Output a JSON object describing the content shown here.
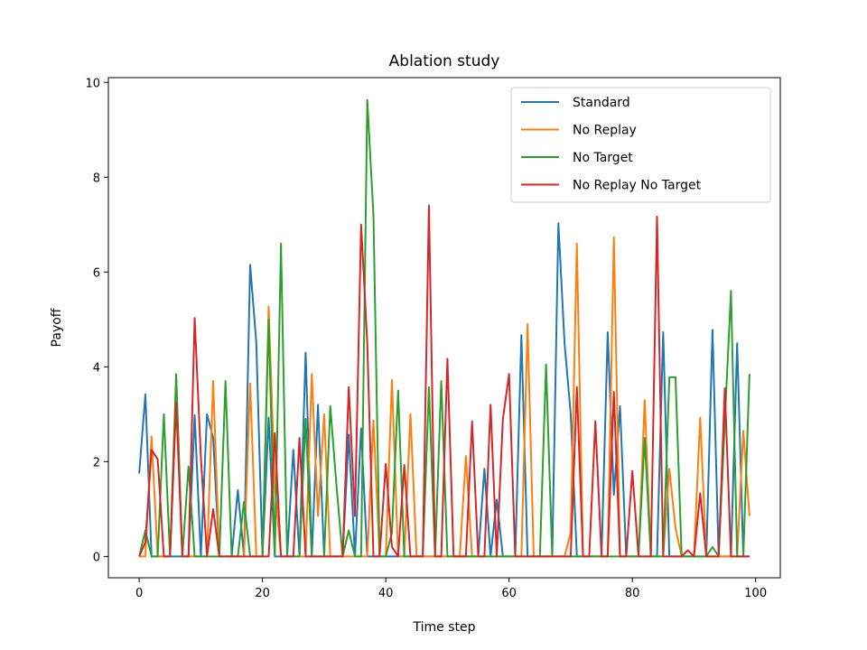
{
  "chart_data": {
    "type": "line",
    "title": "Ablation study",
    "xlabel": "Time step",
    "ylabel": "Payoff",
    "xlim": [
      -5,
      104
    ],
    "ylim": [
      -0.45,
      10.1
    ],
    "xticks": [
      0,
      20,
      40,
      60,
      80,
      100
    ],
    "yticks": [
      0,
      2,
      4,
      6,
      8,
      10
    ],
    "grid": false,
    "legend_position": "top-right",
    "x": [
      0,
      1,
      2,
      3,
      4,
      5,
      6,
      7,
      8,
      9,
      10,
      11,
      12,
      13,
      14,
      15,
      16,
      17,
      18,
      19,
      20,
      21,
      22,
      23,
      24,
      25,
      26,
      27,
      28,
      29,
      30,
      31,
      32,
      33,
      34,
      35,
      36,
      37,
      38,
      39,
      40,
      41,
      42,
      43,
      44,
      45,
      46,
      47,
      48,
      49,
      50,
      51,
      52,
      53,
      54,
      55,
      56,
      57,
      58,
      59,
      60,
      61,
      62,
      63,
      64,
      65,
      66,
      67,
      68,
      69,
      70,
      71,
      72,
      73,
      74,
      75,
      76,
      77,
      78,
      79,
      80,
      81,
      82,
      83,
      84,
      85,
      86,
      87,
      88,
      89,
      90,
      91,
      92,
      93,
      94,
      95,
      96,
      97,
      98,
      99
    ],
    "series": [
      {
        "name": "Standard",
        "color": "#1f77b4",
        "values": [
          1.75,
          3.42,
          0,
          0,
          0,
          0,
          0,
          0,
          0,
          2.98,
          0,
          3.0,
          2.5,
          0,
          0,
          0,
          1.4,
          0,
          6.15,
          4.5,
          0,
          2.93,
          0,
          0,
          0,
          2.25,
          0,
          4.3,
          0,
          3.2,
          0,
          0,
          0,
          0,
          2.57,
          0,
          2.7,
          0,
          0,
          0,
          0,
          0,
          0,
          0,
          0,
          0,
          0,
          0,
          0,
          0,
          0,
          0,
          0,
          0,
          0,
          0,
          1.85,
          0,
          1.2,
          0,
          0,
          0,
          4.67,
          0,
          0,
          0,
          0,
          0,
          7.03,
          4.5,
          3.0,
          0,
          0,
          0,
          0,
          0,
          4.73,
          1.3,
          3.17,
          0,
          0,
          0,
          0,
          0,
          0,
          4.73,
          0,
          0,
          0,
          0,
          0,
          0,
          0,
          4.78,
          0,
          0,
          0,
          4.5,
          0,
          0
        ]
      },
      {
        "name": "No Replay",
        "color": "#ff7f0e",
        "values": [
          0,
          0,
          2.53,
          0,
          0,
          0,
          3.3,
          0,
          0,
          0,
          0,
          0,
          3.7,
          0,
          0,
          0,
          0,
          0,
          3.65,
          0,
          0,
          5.27,
          1.5,
          0,
          0,
          0,
          0,
          0,
          3.85,
          0.85,
          3.0,
          0,
          0,
          0,
          0,
          0,
          0,
          0,
          2.87,
          0,
          0,
          3.72,
          0,
          0,
          3.0,
          0,
          0,
          0,
          0,
          0,
          0,
          0,
          0,
          2.12,
          0,
          0,
          0,
          0,
          0,
          0,
          0,
          0,
          0,
          4.9,
          0,
          0,
          0,
          0,
          0,
          0,
          0.5,
          6.6,
          0,
          0,
          0,
          0,
          0,
          6.73,
          0,
          0,
          0,
          0,
          3.3,
          0,
          0,
          0,
          1.85,
          0.6,
          0,
          0,
          0,
          2.93,
          0,
          0,
          0,
          0,
          0,
          0,
          2.65,
          0.85
        ]
      },
      {
        "name": "No Target",
        "color": "#2ca02c",
        "values": [
          0,
          0.55,
          0,
          0,
          3.0,
          0,
          3.85,
          0,
          1.9,
          0,
          0,
          0,
          0,
          0,
          3.7,
          0,
          0,
          1.15,
          0,
          0,
          0,
          5.0,
          0,
          6.6,
          0,
          0,
          0,
          2.9,
          0,
          0,
          0,
          3.17,
          1.5,
          0,
          0.55,
          0,
          0,
          9.63,
          7.2,
          0,
          0,
          0.5,
          3.5,
          0,
          0,
          0,
          0,
          3.57,
          0,
          3.7,
          0,
          0,
          0,
          0,
          0,
          0,
          0,
          0,
          0,
          0,
          0,
          0,
          0,
          0,
          0,
          0,
          4.05,
          0,
          0,
          0,
          0,
          0,
          0,
          0,
          0,
          0,
          0,
          0,
          0,
          0,
          0,
          0,
          2.5,
          0,
          0,
          0,
          3.78,
          3.78,
          0,
          0,
          0,
          0,
          0,
          0.2,
          0,
          2.85,
          5.6,
          0,
          0,
          3.85
        ]
      },
      {
        "name": "No Replay No Target",
        "color": "#d62728",
        "values": [
          0,
          0.3,
          2.25,
          2.05,
          0,
          0,
          3.25,
          0,
          0,
          5.03,
          2.1,
          0,
          1.0,
          0,
          0,
          0,
          0,
          0,
          0,
          0,
          0,
          0,
          2.6,
          0,
          0,
          0,
          2.5,
          0,
          0,
          0,
          0,
          0,
          0,
          0,
          3.57,
          0.85,
          7.0,
          4.5,
          0,
          0,
          1.95,
          0.2,
          0,
          1.93,
          0,
          0,
          0,
          7.4,
          0,
          0,
          4.17,
          0,
          0,
          0,
          2.85,
          0,
          0,
          3.2,
          0,
          2.9,
          3.85,
          0,
          0,
          0,
          0,
          0,
          0,
          0,
          0,
          0,
          0,
          3.57,
          0,
          0,
          2.85,
          0,
          0,
          3.47,
          0,
          0,
          1.8,
          0,
          0,
          0,
          7.17,
          0,
          0,
          0,
          0,
          0.13,
          0,
          1.33,
          0,
          0,
          0,
          3.55,
          0,
          0,
          0,
          0
        ]
      }
    ]
  }
}
